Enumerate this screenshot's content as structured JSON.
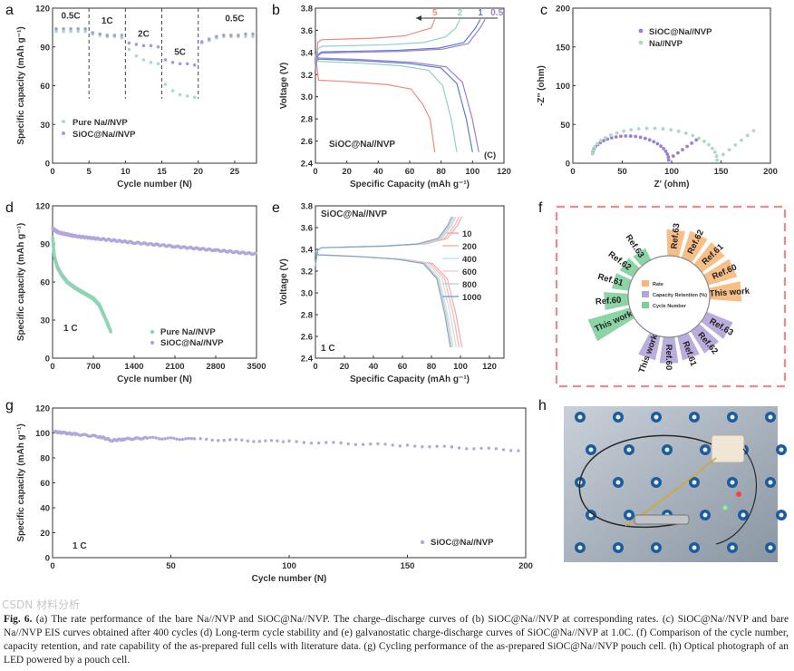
{
  "caption": {
    "label": "Fig. 6.",
    "text": "(a) The rate performance of the bare Na//NVP and SiOC@Na//NVP. The charge–discharge curves of (b) SiOC@Na//NVP at corresponding rates. (c) SiOC@Na//NVP and bare Na//NVP EIS curves obtained after 400 cycles (d) Long-term cycle stability and (e) galvanostatic charge-discharge curves of SiOC@Na//NVP at 1.0C. (f) Comparison of the cycle number, capacity retention, and rate capability of the as-prepared full cells with literature data. (g) Cycling performance of the as-prepared SiOC@Na//NVP pouch cell. (h) Optical photograph of an LED powered by a pouch cell."
  },
  "watermark": "CSDN 材料分析",
  "chart_data": [
    {
      "id": "a",
      "panel_label": "a",
      "type": "scatter",
      "xlabel": "Cycle number (N)",
      "ylabel": "Specific capacity (mAh g⁻¹)",
      "xlim": [
        0,
        28
      ],
      "ylim": [
        0,
        120
      ],
      "xticks": [
        0,
        5,
        10,
        15,
        20,
        25
      ],
      "yticks": [
        0,
        30,
        60,
        90,
        120
      ],
      "dashed_x": [
        5,
        10,
        15,
        20
      ],
      "annotations": [
        {
          "text": "0.5C",
          "x": 2.5,
          "y": 112
        },
        {
          "text": "1C",
          "x": 7.5,
          "y": 108
        },
        {
          "text": "2C",
          "x": 12.5,
          "y": 98
        },
        {
          "text": "5C",
          "x": 17.5,
          "y": 84
        },
        {
          "text": "0.5C",
          "x": 25,
          "y": 110
        }
      ],
      "legend": "bottom-left",
      "series": [
        {
          "name": "Pure Na//NVP",
          "color": "#a8dcc4",
          "x": [
            1,
            2,
            3,
            4,
            5,
            6,
            7,
            8,
            9,
            10,
            11,
            12,
            13,
            14,
            15,
            16,
            17,
            18,
            19,
            20,
            21,
            22,
            23,
            24,
            25,
            26,
            27,
            28
          ],
          "y": [
            102,
            102,
            102,
            102,
            102,
            100,
            99,
            98,
            98,
            97,
            88,
            83,
            80,
            78,
            77,
            61,
            56,
            53,
            52,
            51,
            93,
            95,
            97,
            98,
            98,
            98,
            98,
            98
          ]
        },
        {
          "name": "SiOC@Na//NVP",
          "color": "#a99ad8",
          "x": [
            1,
            2,
            3,
            4,
            5,
            6,
            7,
            8,
            9,
            10,
            11,
            12,
            13,
            14,
            15,
            16,
            17,
            18,
            19,
            20,
            21,
            22,
            23,
            24,
            25,
            26,
            27,
            28
          ],
          "y": [
            104,
            104,
            104,
            104,
            104,
            101,
            100,
            99,
            99,
            99,
            93,
            92,
            91,
            91,
            90,
            80,
            78,
            77,
            77,
            76,
            94,
            96,
            98,
            99,
            99,
            99,
            100,
            100
          ]
        }
      ]
    },
    {
      "id": "b",
      "panel_label": "b",
      "type": "line",
      "xlabel": "Specific Capacity (mAh g⁻¹)",
      "ylabel": "Voltage (V)",
      "xlim": [
        0,
        120
      ],
      "ylim": [
        2.4,
        3.8
      ],
      "xticks": [
        0,
        20,
        40,
        60,
        80,
        100,
        120
      ],
      "yticks": [
        2.4,
        2.6,
        2.8,
        3.0,
        3.2,
        3.4,
        3.6,
        3.8
      ],
      "inset_label": "SiOC@Na//NVP",
      "corner_label": "(C)",
      "series": [
        {
          "name": "5",
          "color": "#f08a80",
          "charge_capacity": 76,
          "discharge_capacity": 76,
          "charge_plateau": 3.52,
          "discharge_plateau": 3.13
        },
        {
          "name": "2",
          "color": "#8fd0c8",
          "charge_capacity": 92,
          "discharge_capacity": 90,
          "charge_plateau": 3.46,
          "discharge_plateau": 3.3
        },
        {
          "name": "1",
          "color": "#5b7fc7",
          "charge_capacity": 105,
          "discharge_capacity": 100,
          "charge_plateau": 3.41,
          "discharge_plateau": 3.32
        },
        {
          "name": "0.5",
          "color": "#9b7fd4",
          "charge_capacity": 108,
          "discharge_capacity": 104,
          "charge_plateau": 3.4,
          "discharge_plateau": 3.33
        }
      ]
    },
    {
      "id": "c",
      "panel_label": "c",
      "type": "line",
      "xlabel": "Z' (ohm)",
      "ylabel": "-Z'' (ohm)",
      "xlim": [
        0,
        200
      ],
      "ylim": [
        0,
        200
      ],
      "xticks": [
        0,
        50,
        100,
        150,
        200
      ],
      "yticks": [
        0,
        50,
        100,
        150,
        200
      ],
      "legend": "top-right",
      "series": [
        {
          "name": "SiOC@Na//NVP",
          "color": "#9b7fd4",
          "r_start": 20,
          "r_end": 97,
          "tail_end": [
            125,
            30
          ]
        },
        {
          "name": "Na//NVP",
          "color": "#a8dcc4",
          "r_start": 20,
          "r_end": 146,
          "tail_end": [
            183,
            42
          ]
        }
      ]
    },
    {
      "id": "d",
      "panel_label": "d",
      "type": "scatter",
      "xlabel": "Cycle number (N)",
      "ylabel": "Specific capacity (mAh g⁻¹)",
      "xlim": [
        0,
        3500
      ],
      "ylim": [
        0,
        120
      ],
      "xticks": [
        0,
        700,
        1400,
        2100,
        2800,
        3500
      ],
      "yticks": [
        0,
        30,
        60,
        90,
        120
      ],
      "inset_label": "1 C",
      "legend": "bottom-right",
      "series": [
        {
          "name": "Pure Na//NVP",
          "color": "#8fd4b4",
          "x": [
            1,
            30,
            80,
            150,
            250,
            400,
            550,
            700,
            800,
            900,
            1000
          ],
          "y": [
            95,
            80,
            72,
            66,
            60,
            55,
            51,
            47,
            42,
            32,
            21
          ]
        },
        {
          "name": "SiOC@Na//NVP",
          "color": "#b3a6dc",
          "x": [
            1,
            100,
            400,
            800,
            1400,
            2100,
            2800,
            3500
          ],
          "y": [
            102,
            99,
            96,
            94,
            91,
            88,
            85,
            82
          ]
        }
      ]
    },
    {
      "id": "e",
      "panel_label": "e",
      "type": "line",
      "xlabel": "Specific Capacity (mAh g⁻¹)",
      "ylabel": "Voltage (V)",
      "xlim": [
        0,
        130
      ],
      "ylim": [
        2.4,
        3.8
      ],
      "xticks": [
        0,
        20,
        40,
        60,
        80,
        100,
        120
      ],
      "yticks": [
        2.4,
        2.6,
        2.8,
        3.0,
        3.2,
        3.4,
        3.6,
        3.8
      ],
      "inset_label": "SiOC@Na//NVP",
      "corner_label": "1 C",
      "legend": "right",
      "series": [
        {
          "name": "10",
          "color": "#f4a6b8",
          "charge_capacity": 101,
          "discharge_capacity": 101
        },
        {
          "name": "200",
          "color": "#f7b6a0",
          "charge_capacity": 99,
          "discharge_capacity": 99
        },
        {
          "name": "400",
          "color": "#bfe3ee",
          "charge_capacity": 97,
          "discharge_capacity": 97
        },
        {
          "name": "600",
          "color": "#f3cde0",
          "charge_capacity": 96,
          "discharge_capacity": 95
        },
        {
          "name": "800",
          "color": "#b8dcc0",
          "charge_capacity": 95,
          "discharge_capacity": 94
        },
        {
          "name": "1000",
          "color": "#7ea7cf",
          "charge_capacity": 94,
          "discharge_capacity": 93
        }
      ]
    },
    {
      "id": "f",
      "panel_label": "f",
      "type": "radial-bar",
      "legend": [
        "Rate",
        "Capacity Retention (%)",
        "Cycle Number"
      ],
      "legend_colors": [
        "#f7b77a",
        "#b3a3d8",
        "#7fcf9c"
      ],
      "groups": [
        {
          "name": "Rate",
          "color": "#f7b77a",
          "labels": [
            "Ref.63",
            "Ref.62",
            "Ref.61",
            "Ref.60",
            "This work"
          ],
          "values": [
            0.55,
            0.6,
            0.6,
            0.65,
            0.7
          ]
        },
        {
          "name": "Capacity Retention (%)",
          "color": "#b3a3d8",
          "labels": [
            "Ref.63",
            "Ref.62",
            "Ref.61",
            "Ref.60",
            "This work"
          ],
          "values": [
            0.6,
            0.55,
            0.5,
            0.55,
            0.5
          ]
        },
        {
          "name": "Cycle Number",
          "color": "#7fcf9c",
          "labels": [
            "Ref.63",
            "Ref.62",
            "Ref.61",
            "Ref.60",
            "This work"
          ],
          "values": [
            0.2,
            0.25,
            0.3,
            0.5,
            1.0
          ]
        }
      ]
    },
    {
      "id": "g",
      "panel_label": "g",
      "type": "scatter",
      "xlabel": "Cycle number (N)",
      "ylabel": "Specific capacity (mAh g⁻¹)",
      "xlim": [
        0,
        200
      ],
      "ylim": [
        0,
        120
      ],
      "xticks": [
        0,
        50,
        100,
        150,
        200
      ],
      "yticks": [
        0,
        20,
        40,
        60,
        80,
        100,
        120
      ],
      "inset_label": "1 C",
      "legend": "bottom-right",
      "series": [
        {
          "name": "SiOC@Na//NVP",
          "color": "#b3a6dc",
          "x": [
            1,
            5,
            10,
            20,
            25,
            30,
            40,
            60,
            100,
            150,
            200
          ],
          "y": [
            101,
            100,
            99,
            97,
            94,
            95,
            96,
            95,
            93,
            90,
            86
          ]
        }
      ]
    }
  ],
  "photo": {
    "panel_label": "h"
  }
}
